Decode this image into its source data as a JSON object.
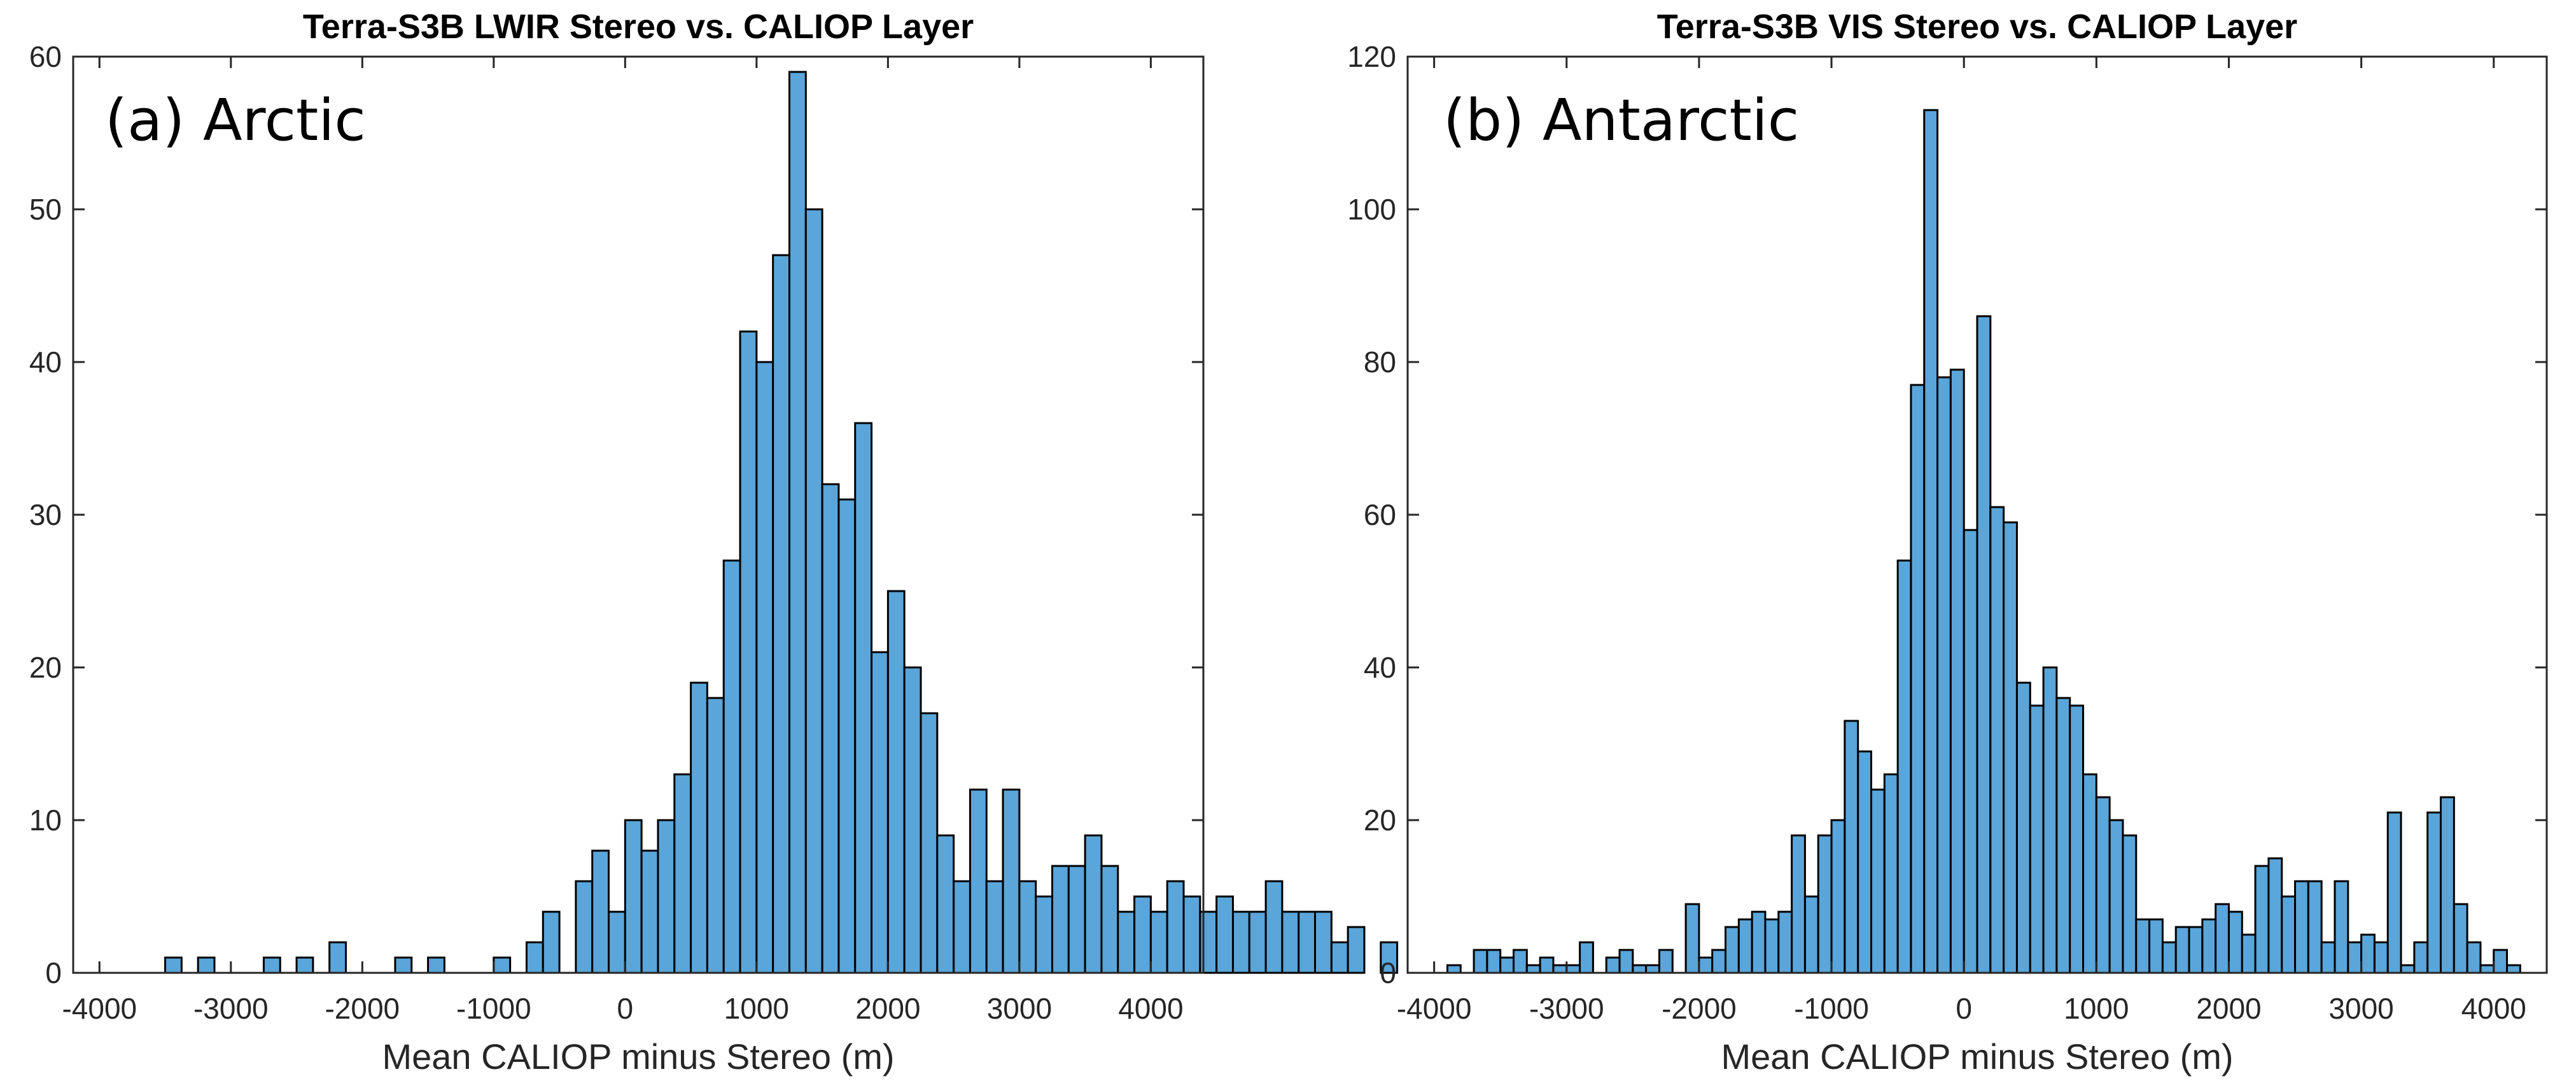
{
  "colors": {
    "bar_fill": "#5aa5d9",
    "bar_edge": "#000000",
    "axis": "#262626"
  },
  "chart_data": [
    {
      "type": "bar",
      "title": "Terra-S3B LWIR Stereo vs. CALIOP Layer",
      "panel_label": "(a) Arctic",
      "xlabel": "Mean CALIOP minus Stereo (m)",
      "ylabel": "",
      "xlim": [
        -4200,
        4400
      ],
      "ylim": [
        0,
        60
      ],
      "xticks": [
        -4000,
        -3000,
        -2000,
        -1000,
        0,
        1000,
        2000,
        3000,
        4000
      ],
      "yticks": [
        0,
        10,
        20,
        30,
        40,
        50,
        60
      ],
      "bin_start": -4000,
      "bin_width": 125,
      "values": [
        0,
        0,
        0,
        0,
        1,
        0,
        1,
        0,
        0,
        0,
        1,
        0,
        1,
        0,
        2,
        0,
        0,
        0,
        1,
        0,
        1,
        0,
        0,
        0,
        1,
        0,
        2,
        4,
        0,
        6,
        8,
        4,
        10,
        8,
        10,
        13,
        19,
        18,
        27,
        42,
        40,
        47,
        59,
        50,
        32,
        31,
        36,
        21,
        25,
        20,
        17,
        9,
        6,
        12,
        6,
        12,
        6,
        5,
        7,
        7,
        9,
        7,
        4,
        5,
        4,
        6,
        5,
        4,
        5,
        4,
        4,
        6,
        4,
        4,
        4,
        2,
        3,
        0,
        2,
        0
      ]
    },
    {
      "type": "bar",
      "title": "Terra-S3B VIS Stereo vs. CALIOP Layer",
      "panel_label": "(b) Antarctic",
      "xlabel": "Mean CALIOP minus Stereo (m)",
      "ylabel": "",
      "xlim": [
        -4200,
        4400
      ],
      "ylim": [
        0,
        120
      ],
      "xticks": [
        -4000,
        -3000,
        -2000,
        -1000,
        0,
        1000,
        2000,
        3000,
        4000
      ],
      "yticks": [
        0,
        20,
        40,
        60,
        80,
        100,
        120
      ],
      "bin_start": -4000,
      "bin_width": 100,
      "values": [
        0,
        1,
        0,
        3,
        3,
        2,
        3,
        1,
        2,
        1,
        1,
        4,
        0,
        2,
        3,
        1,
        1,
        3,
        0,
        9,
        2,
        3,
        6,
        7,
        8,
        7,
        8,
        18,
        10,
        18,
        20,
        33,
        29,
        24,
        26,
        54,
        77,
        113,
        78,
        79,
        58,
        86,
        61,
        59,
        38,
        35,
        40,
        36,
        35,
        26,
        23,
        20,
        18,
        7,
        7,
        4,
        6,
        6,
        7,
        9,
        8,
        5,
        14,
        15,
        10,
        12,
        12,
        4,
        12,
        4,
        5,
        4,
        21,
        1,
        4,
        21,
        23,
        9,
        4,
        1,
        3,
        1
      ]
    }
  ]
}
